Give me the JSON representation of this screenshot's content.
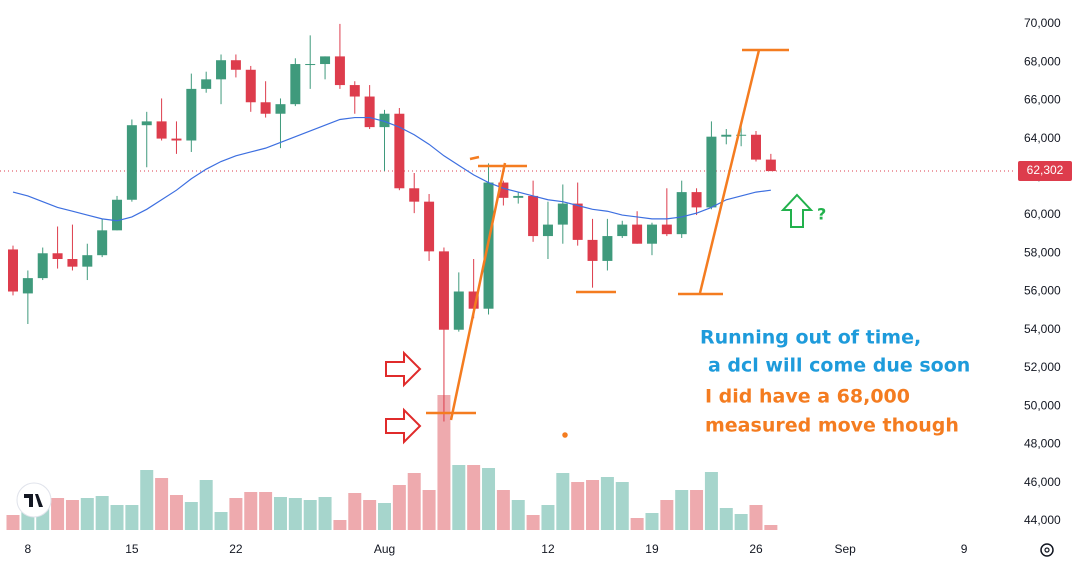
{
  "chart_data": {
    "type": "candlestick",
    "categories": [
      null,
      "8",
      null,
      null,
      null,
      null,
      null,
      null,
      "15",
      null,
      null,
      null,
      null,
      null,
      null,
      "22",
      null,
      null,
      null,
      null,
      null,
      null,
      null,
      null,
      null,
      "Aug",
      null,
      null,
      null,
      null,
      null,
      null,
      null,
      null,
      null,
      null,
      "12",
      null,
      null,
      null,
      null,
      null,
      null,
      "19",
      null,
      null,
      null,
      null,
      null,
      null,
      "26",
      null,
      null,
      null,
      null,
      null,
      "Sep",
      null,
      null,
      null,
      null,
      null,
      null,
      null,
      "9"
    ],
    "open": [
      58200,
      55900,
      56700,
      58000,
      57700,
      57300,
      57900,
      59200,
      60800,
      64700,
      64900,
      64000,
      63900,
      66600,
      67100,
      68100,
      67600,
      65900,
      65300,
      65800,
      67900,
      67900,
      68300,
      66800,
      66200,
      64600,
      65300,
      61400,
      60700,
      58100,
      54000,
      56000,
      55100,
      61700,
      60900,
      61000,
      58900,
      59500,
      60600,
      58700,
      57600,
      58900,
      59500,
      58500,
      59500,
      59000,
      61200,
      60400,
      64100,
      64200,
      64200,
      62900,
      null,
      null,
      null,
      null,
      null,
      null,
      null,
      null,
      null,
      null,
      null,
      null,
      null
    ],
    "high": [
      58400,
      57100,
      58300,
      59400,
      59500,
      58500,
      59800,
      61000,
      65000,
      65400,
      66100,
      64900,
      67400,
      67500,
      68400,
      68400,
      67800,
      67000,
      66100,
      68200,
      69400,
      68300,
      70000,
      67000,
      66800,
      65500,
      65600,
      62200,
      61100,
      58300,
      57000,
      57700,
      62700,
      61800,
      61200,
      61800,
      60700,
      61600,
      61700,
      59800,
      59800,
      59700,
      60200,
      59600,
      61400,
      61800,
      61400,
      64900,
      64500,
      64900,
      64400,
      63200,
      null,
      null,
      null,
      null,
      null,
      null,
      null,
      null,
      null,
      null,
      null,
      null,
      null
    ],
    "low": [
      55800,
      54300,
      56600,
      57200,
      57100,
      56600,
      57800,
      59200,
      60700,
      62500,
      63900,
      63200,
      63300,
      66400,
      65800,
      67200,
      65400,
      65100,
      63500,
      65700,
      66600,
      67100,
      66600,
      65300,
      64500,
      62300,
      61300,
      60100,
      57600,
      49200,
      53900,
      54600,
      54800,
      60500,
      60600,
      58600,
      57700,
      58500,
      58400,
      56200,
      57100,
      58800,
      58500,
      57900,
      58900,
      58800,
      60000,
      60300,
      63700,
      63600,
      62800,
      62300,
      null,
      null,
      null,
      null,
      null,
      null,
      null,
      null,
      null,
      null,
      null,
      null,
      null
    ],
    "close": [
      56000,
      56700,
      58000,
      57700,
      57300,
      57900,
      59200,
      60800,
      64700,
      64900,
      64000,
      63900,
      66600,
      67100,
      68100,
      67600,
      65900,
      65300,
      65800,
      67900,
      67900,
      68300,
      66800,
      66200,
      64600,
      65300,
      61400,
      60700,
      58100,
      54000,
      56000,
      55100,
      61700,
      60900,
      61000,
      58900,
      59500,
      60600,
      58700,
      57600,
      58900,
      59500,
      58500,
      59500,
      59000,
      61200,
      60400,
      64100,
      64200,
      64200,
      62900,
      62300,
      null,
      null,
      null,
      null,
      null,
      null,
      null,
      null,
      null,
      null,
      null,
      null,
      null
    ],
    "volume": [
      15,
      18,
      25,
      32,
      30,
      32,
      34,
      25,
      25,
      60,
      52,
      35,
      28,
      50,
      18,
      32,
      38,
      38,
      33,
      32,
      30,
      33,
      10,
      37,
      30,
      27,
      45,
      57,
      40,
      135,
      65,
      65,
      62,
      40,
      30,
      15,
      25,
      57,
      48,
      50,
      53,
      48,
      12,
      17,
      30,
      40,
      40,
      58,
      22,
      16,
      25,
      5,
      null,
      null,
      null,
      null,
      null,
      null,
      null,
      null,
      null,
      null,
      null,
      null,
      null
    ],
    "ma": {
      "color": "#3d6fe0",
      "values": [
        61200,
        61000,
        60700,
        60400,
        60200,
        60000,
        59800,
        59700,
        59900,
        60300,
        60800,
        61300,
        61900,
        62400,
        62800,
        63100,
        63300,
        63500,
        63800,
        64100,
        64400,
        64700,
        65000,
        65100,
        65100,
        64900,
        64600,
        64200,
        63700,
        63100,
        62600,
        62100,
        61700,
        61400,
        61200,
        61000,
        60800,
        60700,
        60500,
        60300,
        60200,
        60000,
        59900,
        59800,
        59800,
        59900,
        60100,
        60400,
        60800,
        61000,
        61200,
        61300,
        null,
        null,
        null,
        null,
        null,
        null,
        null,
        null,
        null,
        null,
        null,
        null,
        null
      ]
    },
    "up_color": "#3f9a7c",
    "down_color": "#dd3c4c",
    "up_volume_color": "#a6d5cc",
    "down_volume_color": "#eeaaae",
    "ylim": [
      43000,
      71250
    ],
    "yticks": [
      {
        "value": 44000,
        "label": "44,000"
      },
      {
        "value": 46000,
        "label": "46,000"
      },
      {
        "value": 48000,
        "label": "48,000"
      },
      {
        "value": 50000,
        "label": "50,000"
      },
      {
        "value": 52000,
        "label": "52,000"
      },
      {
        "value": 54000,
        "label": "54,000"
      },
      {
        "value": 56000,
        "label": "56,000"
      },
      {
        "value": 58000,
        "label": "58,000"
      },
      {
        "value": 60000,
        "label": "60,000"
      },
      {
        "value": 62000,
        "label": "62,000"
      },
      {
        "value": 64000,
        "label": "64,000"
      },
      {
        "value": 66000,
        "label": "66,000"
      },
      {
        "value": 68000,
        "label": "68,000"
      },
      {
        "value": 70000,
        "label": "70,000"
      }
    ],
    "last_price": {
      "value": 62302,
      "label": "62,302"
    },
    "grid": false,
    "annotations": [
      "Running out of time,",
      "a dcl will come due soon",
      "I did have a 68,000",
      "measured move though",
      "?"
    ]
  }
}
